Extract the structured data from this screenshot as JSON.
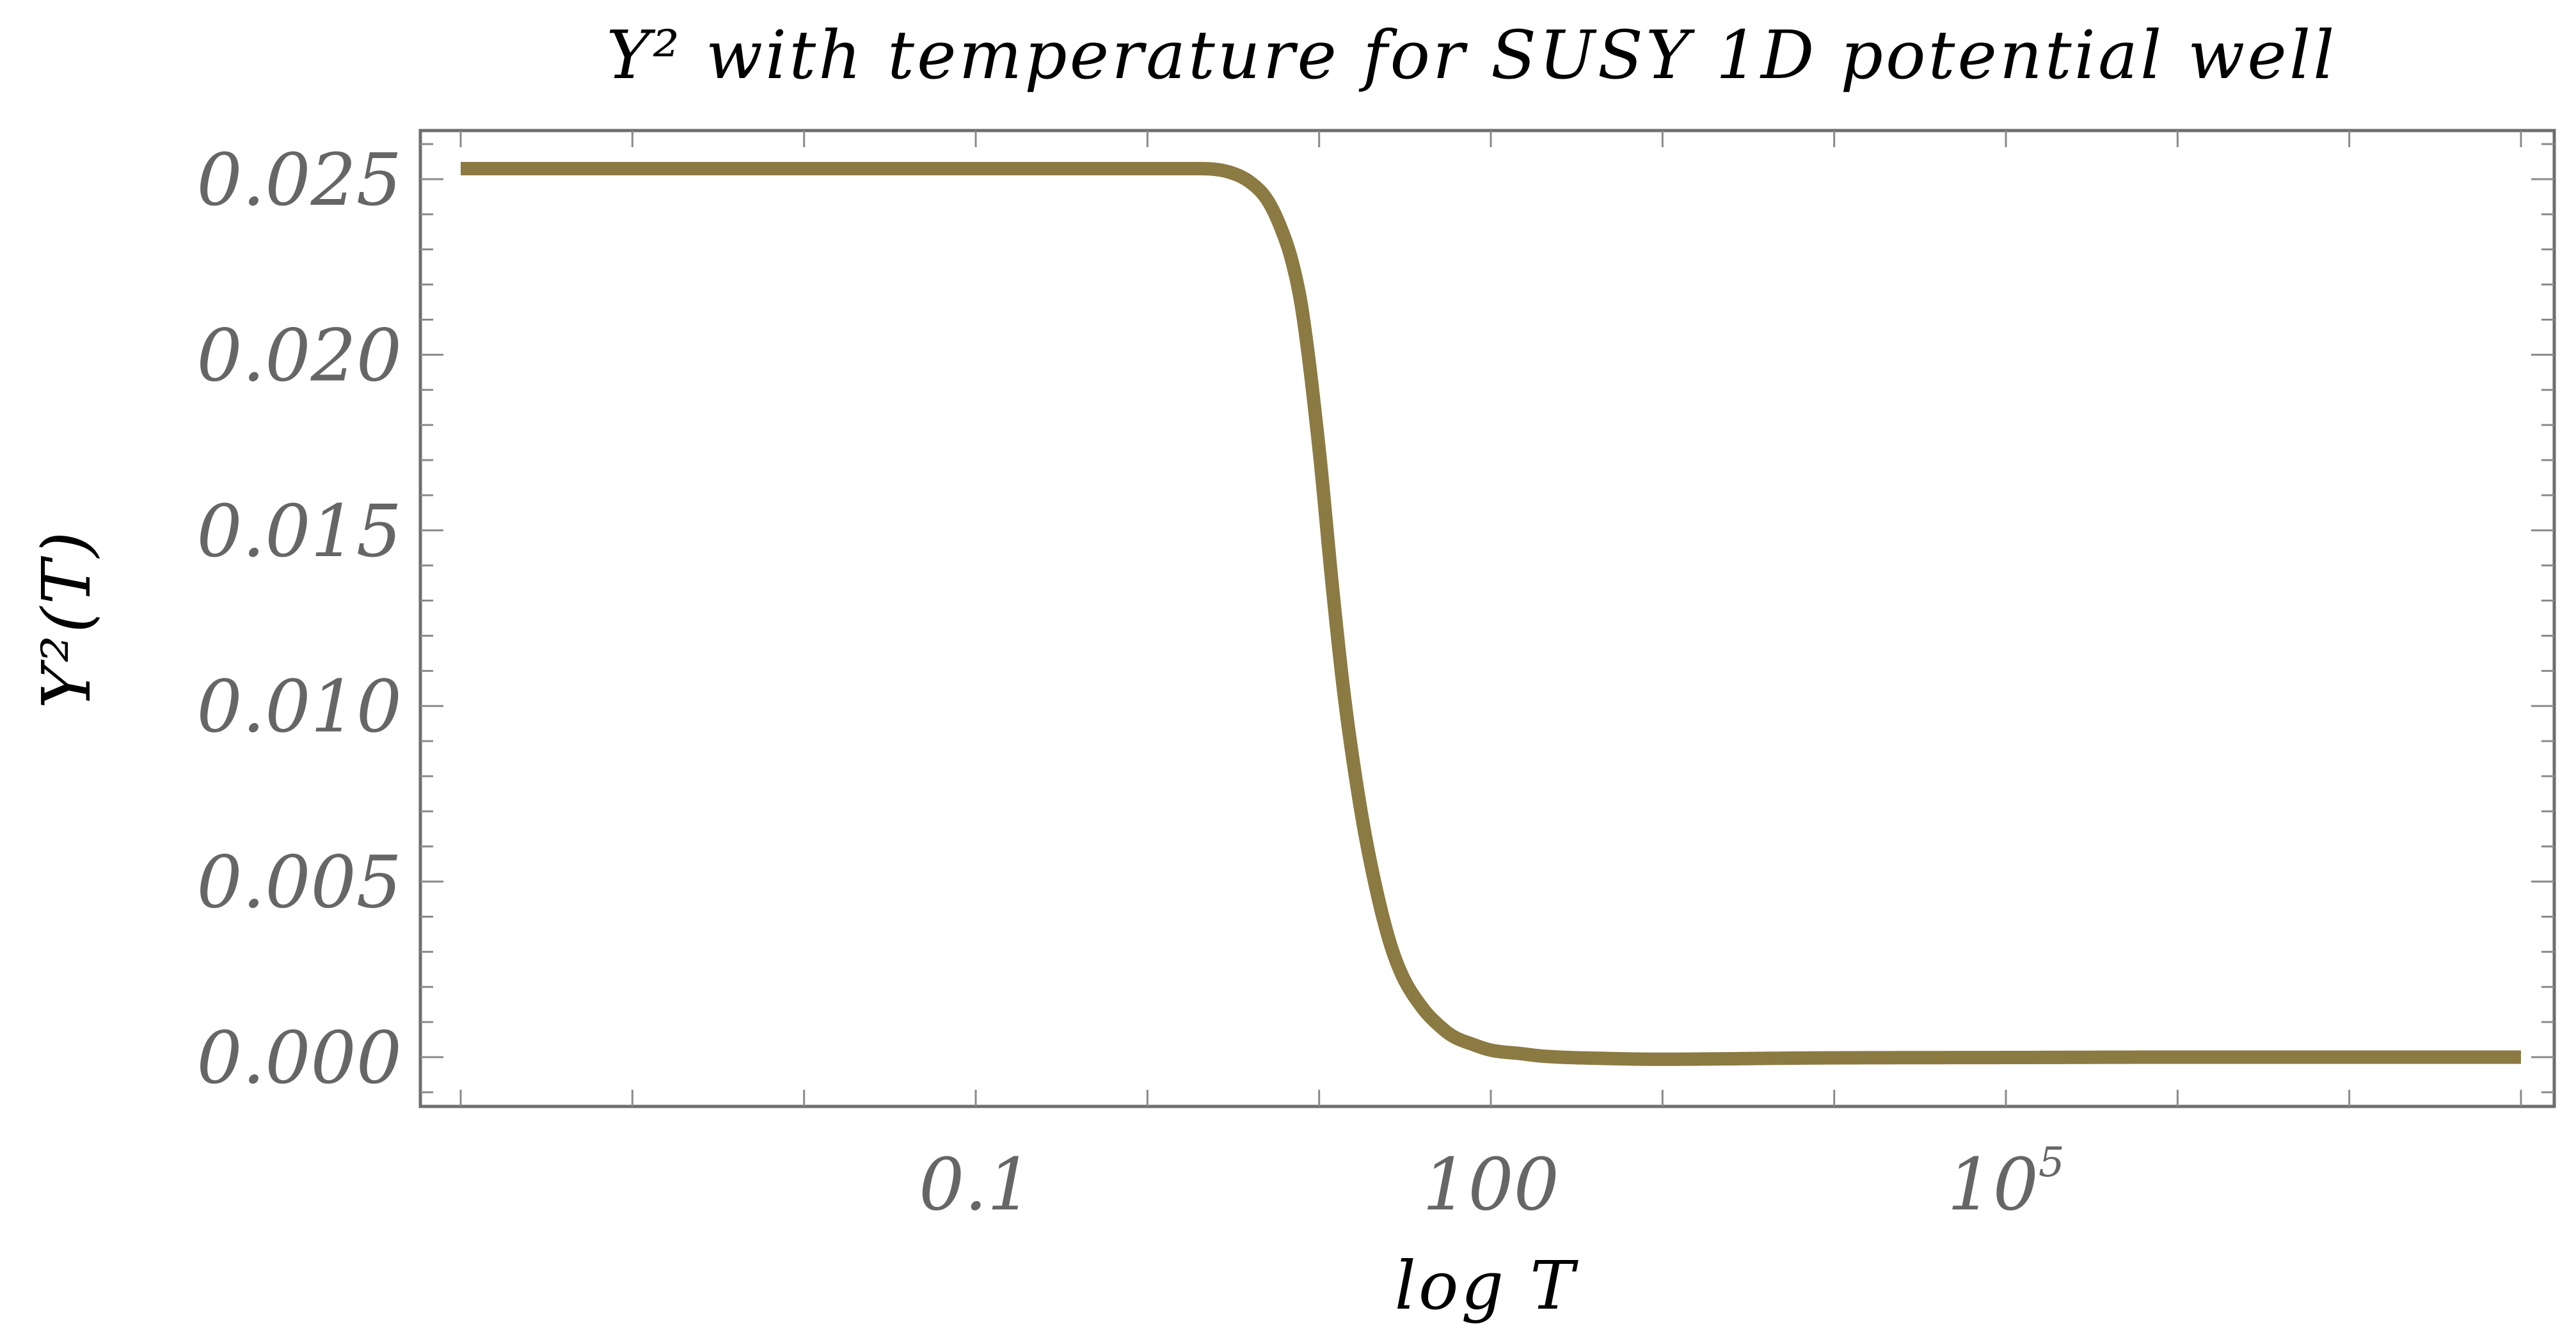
{
  "chart_data": {
    "type": "line",
    "title": "Y² with temperature for SUSY 1D potential well",
    "xlabel": "log T",
    "ylabel": "Y²(T)",
    "x_scale": "log",
    "xlim": [
      0.0001,
      100000000
    ],
    "ylim": [
      -0.0014,
      0.0265
    ],
    "x_ticks": [
      {
        "value": 0.1,
        "label": "0.1"
      },
      {
        "value": 100,
        "label": "100"
      },
      {
        "value": 100000,
        "label": "10",
        "exponent": "5"
      }
    ],
    "y_ticks": [
      {
        "value": 0.0,
        "label": "0.000"
      },
      {
        "value": 0.005,
        "label": "0.005"
      },
      {
        "value": 0.01,
        "label": "0.010"
      },
      {
        "value": 0.015,
        "label": "0.015"
      },
      {
        "value": 0.02,
        "label": "0.020"
      },
      {
        "value": 0.025,
        "label": "0.025"
      }
    ],
    "grid": false,
    "series": [
      {
        "color": "#8b7a42",
        "x": [
          0.0001,
          0.001,
          0.01,
          0.1,
          1,
          2,
          3,
          4,
          5,
          6,
          7,
          8,
          10,
          12,
          14,
          17,
          20,
          25,
          30,
          40,
          50,
          60,
          80,
          100,
          150,
          200,
          500,
          1000,
          2000,
          5000,
          10000,
          100000,
          1000000,
          10000000,
          100000000
        ],
        "y": [
          0.0253,
          0.0253,
          0.0253,
          0.0253,
          0.0253,
          0.0253,
          0.0252,
          0.0249,
          0.0244,
          0.0236,
          0.0226,
          0.0212,
          0.0173,
          0.0133,
          0.0103,
          0.0074,
          0.0055,
          0.0035,
          0.0024,
          0.0014,
          0.0009,
          0.0006,
          0.00035,
          0.0002,
          0.0001,
          3e-05,
          -4e-05,
          -6e-05,
          -5e-05,
          -3e-05,
          -2e-05,
          -1e-05,
          0.0,
          0.0,
          0.0
        ]
      }
    ]
  }
}
